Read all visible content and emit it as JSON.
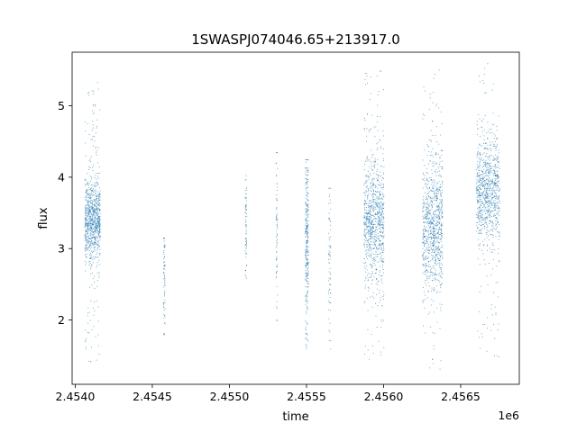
{
  "chart_data": {
    "type": "scatter",
    "title": "1SWASPJ074046.65+213917.0",
    "xlabel": "time",
    "ylabel": "flux",
    "x_offset_label": "1e6",
    "xlim": [
      2453980,
      2456880
    ],
    "ylim": [
      1.1,
      5.75
    ],
    "grid": false,
    "legend": "none",
    "point_color": "#1f77b4",
    "x_ticks": [
      2454000,
      2454500,
      2455000,
      2455500,
      2456000,
      2456500
    ],
    "x_tick_labels": [
      "2.4540",
      "2.4545",
      "2.4550",
      "2.4555",
      "2.4560",
      "2.4565"
    ],
    "y_ticks": [
      2,
      3,
      4,
      5
    ],
    "y_tick_labels": [
      "2",
      "3",
      "4",
      "5"
    ],
    "clusters": [
      {
        "x_start": 2454060,
        "x_end": 2454160,
        "y_center": 3.4,
        "y_spread": 0.28,
        "y_min": 1.4,
        "y_max": 5.35,
        "density": "high"
      },
      {
        "x_start": 2454570,
        "x_end": 2454580,
        "y_center": 2.6,
        "y_spread": 0.4,
        "y_min": 1.75,
        "y_max": 3.15,
        "density": "low"
      },
      {
        "x_start": 2455100,
        "x_end": 2455110,
        "y_center": 3.3,
        "y_spread": 0.35,
        "y_min": 2.45,
        "y_max": 4.1,
        "density": "low"
      },
      {
        "x_start": 2455300,
        "x_end": 2455310,
        "y_center": 3.1,
        "y_spread": 0.55,
        "y_min": 1.35,
        "y_max": 4.35,
        "density": "low"
      },
      {
        "x_start": 2455490,
        "x_end": 2455510,
        "y_center": 3.1,
        "y_spread": 0.6,
        "y_min": 1.6,
        "y_max": 4.25,
        "density": "medium"
      },
      {
        "x_start": 2455640,
        "x_end": 2455655,
        "y_center": 3.0,
        "y_spread": 0.5,
        "y_min": 1.6,
        "y_max": 3.85,
        "density": "low"
      },
      {
        "x_start": 2455870,
        "x_end": 2456000,
        "y_center": 3.4,
        "y_spread": 0.45,
        "y_min": 1.45,
        "y_max": 5.55,
        "density": "high"
      },
      {
        "x_start": 2456250,
        "x_end": 2456380,
        "y_center": 3.3,
        "y_spread": 0.45,
        "y_min": 1.3,
        "y_max": 5.55,
        "density": "high"
      },
      {
        "x_start": 2456600,
        "x_end": 2456750,
        "y_center": 3.8,
        "y_spread": 0.35,
        "y_min": 1.4,
        "y_max": 5.6,
        "density": "high"
      }
    ]
  }
}
